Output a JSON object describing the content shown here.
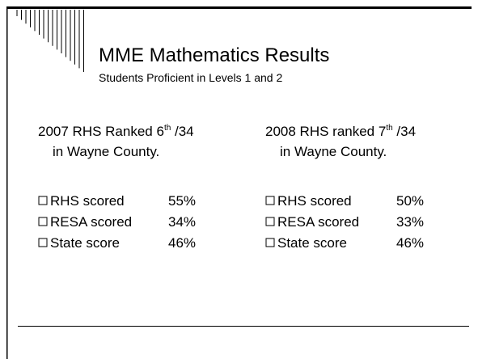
{
  "slide": {
    "title": "MME Mathematics Results",
    "subtitle": "Students Proficient in Levels 1 and 2",
    "columns": [
      {
        "heading": {
          "before": "2007 RHS Ranked 6",
          "sup": "th",
          "after": " /34",
          "line2": "in Wayne County."
        },
        "items": [
          {
            "label": "RHS scored",
            "value": "55%"
          },
          {
            "label": "RESA scored",
            "value": "34%"
          },
          {
            "label": "State score",
            "value": "46%"
          }
        ]
      },
      {
        "heading": {
          "before": "2008 RHS ranked 7",
          "sup": "th",
          "after": " /34",
          "line2": "in Wayne County."
        },
        "items": [
          {
            "label": "RHS scored",
            "value": "50%"
          },
          {
            "label": "RESA scored",
            "value": "33%"
          },
          {
            "label": "State score",
            "value": "46%"
          }
        ]
      }
    ]
  }
}
